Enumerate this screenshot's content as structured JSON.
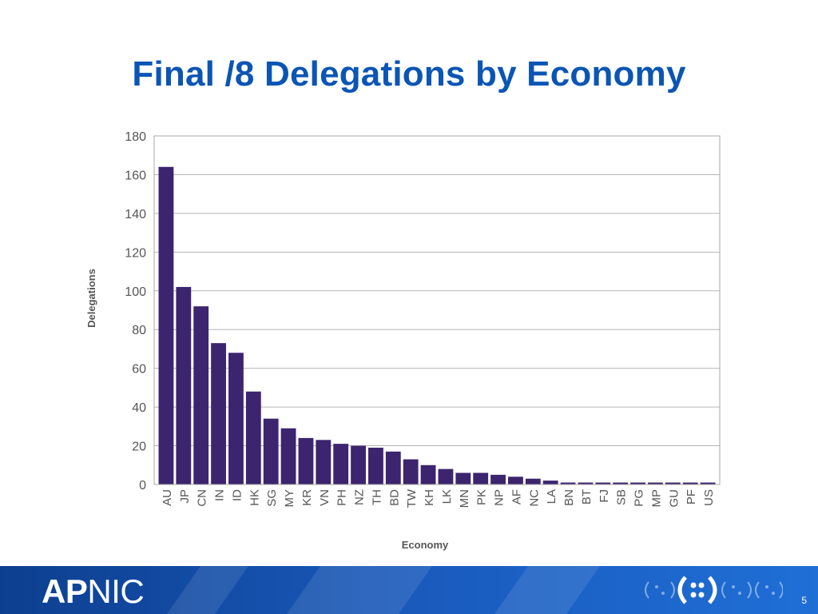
{
  "slide": {
    "title": "Final /8 Delegations by Economy",
    "logo_bold": "AP",
    "logo_regular": "NIC",
    "page_number": "5"
  },
  "colors": {
    "title": "#0b55b5",
    "bar": "#3c246f",
    "footer": "#1a5cbf"
  },
  "chart_data": {
    "type": "bar",
    "xlabel": "Economy",
    "ylabel": "Delegations",
    "ylim": [
      0,
      180
    ],
    "yticks": [
      0,
      20,
      40,
      60,
      80,
      100,
      120,
      140,
      160,
      180
    ],
    "grid": true,
    "categories": [
      "AU",
      "JP",
      "CN",
      "IN",
      "ID",
      "HK",
      "SG",
      "MY",
      "KR",
      "VN",
      "PH",
      "NZ",
      "TH",
      "BD",
      "TW",
      "KH",
      "LK",
      "MN",
      "PK",
      "NP",
      "AF",
      "NC",
      "LA",
      "BN",
      "BT",
      "FJ",
      "SB",
      "PG",
      "MP",
      "GU",
      "PF",
      "US"
    ],
    "values": [
      164,
      102,
      92,
      73,
      68,
      48,
      34,
      29,
      24,
      23,
      21,
      20,
      19,
      17,
      13,
      10,
      8,
      6,
      6,
      5,
      4,
      3,
      2,
      1,
      1,
      1,
      1,
      1,
      1,
      1,
      1,
      1
    ]
  }
}
